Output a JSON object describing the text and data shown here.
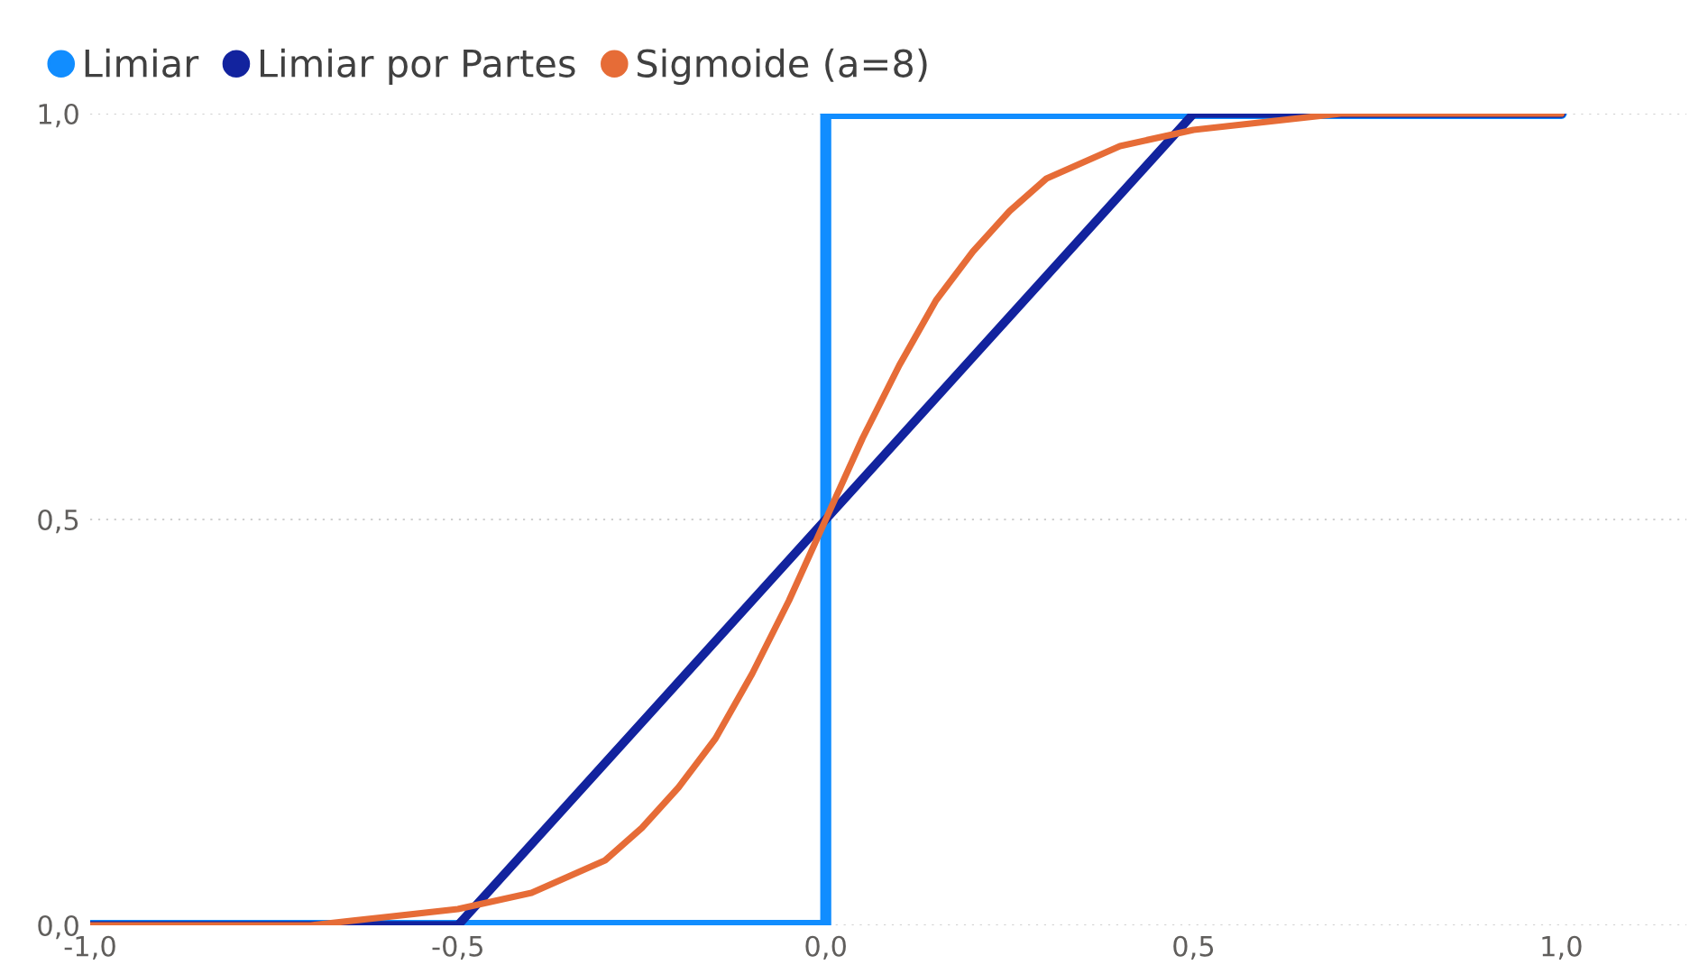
{
  "chart_data": {
    "type": "line",
    "xlim": [
      -1.0,
      1.17
    ],
    "ylim": [
      0,
      1
    ],
    "xticks": [
      {
        "value": -1.0,
        "label": "-1,0"
      },
      {
        "value": -0.5,
        "label": "-0,5"
      },
      {
        "value": 0,
        "label": "0,0"
      },
      {
        "value": 0.5,
        "label": "0,5"
      },
      {
        "value": 1.0,
        "label": "1,0"
      }
    ],
    "yticks": [
      {
        "value": 0,
        "label": "0,0"
      },
      {
        "value": 0.5,
        "label": "0,5"
      },
      {
        "value": 1,
        "label": "1,0"
      }
    ],
    "grid": "y",
    "legend": "top left",
    "marker": "none",
    "line_style": "solid",
    "series": [
      {
        "name": "Limiar",
        "color": "#118dff",
        "x": [
          -1,
          0,
          0,
          1
        ],
        "values": [
          0,
          0,
          1,
          1
        ]
      },
      {
        "name": "Limiar por Partes",
        "color": "#12239e",
        "x": [
          -1,
          -0.5,
          0.5,
          1
        ],
        "values": [
          0,
          0,
          1,
          1
        ]
      },
      {
        "name": "Sigmoide (a=8)",
        "color": "#e66c37",
        "x": [
          -1,
          -0.9,
          -0.8,
          -0.7,
          -0.6,
          -0.5,
          -0.4,
          -0.35,
          -0.3,
          -0.25,
          -0.2,
          -0.15,
          -0.1,
          -0.05,
          0,
          0.05,
          0.1,
          0.15,
          0.2,
          0.25,
          0.3,
          0.35,
          0.4,
          0.5,
          0.6,
          0.7,
          0.8,
          0.9,
          1
        ],
        "values": [
          0,
          0,
          0,
          0,
          0.01,
          0.02,
          0.04,
          0.06,
          0.08,
          0.12,
          0.17,
          0.23,
          0.31,
          0.4,
          0.5,
          0.6,
          0.69,
          0.77,
          0.83,
          0.88,
          0.92,
          0.94,
          0.96,
          0.98,
          0.99,
          1,
          1,
          1,
          1
        ]
      }
    ]
  }
}
